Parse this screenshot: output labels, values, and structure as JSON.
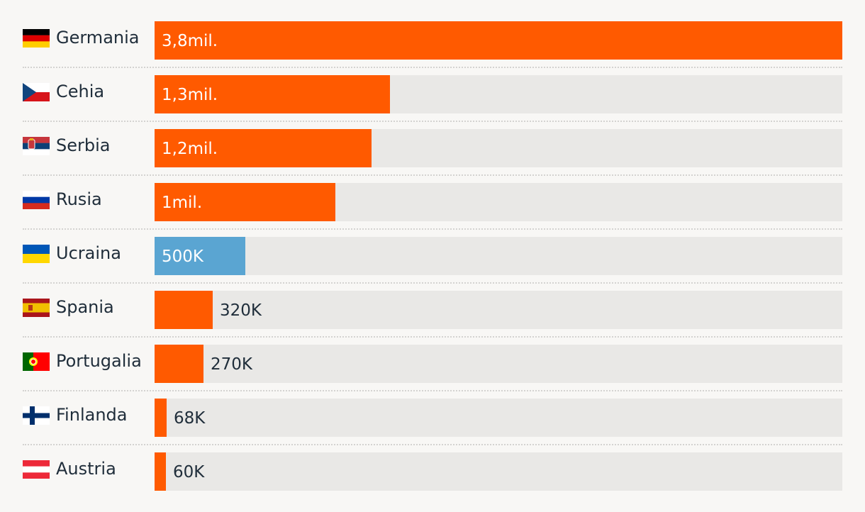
{
  "chart_data": {
    "type": "bar",
    "orientation": "horizontal",
    "categories": [
      "Germania",
      "Cehia",
      "Serbia",
      "Rusia",
      "Ucraina",
      "Spania",
      "Portugalia",
      "Finlanda",
      "Austria"
    ],
    "values": [
      3800000,
      1300000,
      1200000,
      1000000,
      500000,
      320000,
      270000,
      68000,
      60000
    ],
    "value_labels": [
      "3,8mil.",
      "1,3mil.",
      "1,2mil.",
      "1mil.",
      "500K",
      "320K",
      "270K",
      "68K",
      "60K"
    ],
    "flags": [
      "germany-flag-icon",
      "czech-flag-icon",
      "serbia-flag-icon",
      "russia-flag-icon",
      "ukraine-flag-icon",
      "spain-flag-icon",
      "portugal-flag-icon",
      "finland-flag-icon",
      "austria-flag-icon"
    ],
    "bar_colors": [
      "#ff5a00",
      "#ff5a00",
      "#ff5a00",
      "#ff5a00",
      "#5aa5d2",
      "#ff5a00",
      "#ff5a00",
      "#ff5a00",
      "#ff5a00"
    ],
    "xlim": [
      0,
      3800000
    ],
    "grid": false,
    "legend": "none",
    "title": "",
    "xlabel": "",
    "ylabel": ""
  },
  "colors": {
    "background": "#f8f7f5",
    "track": "#e9e8e6",
    "text": "#1f2d3a",
    "label_on_bar": "#ffffff"
  }
}
